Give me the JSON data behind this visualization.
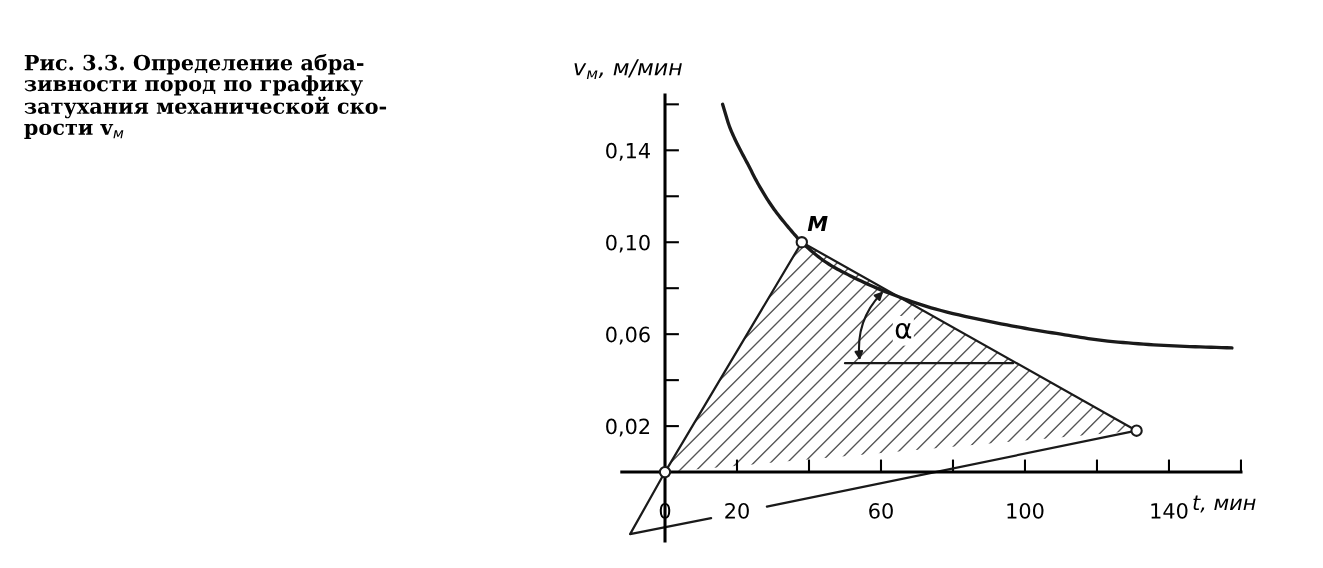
{
  "chart_data": {
    "type": "line",
    "title": "Рис. 3.3. Определение абра-\nзивности пород по графику\nзатухания механической ско-\nрости v$_{м}$",
    "xlabel": "t, мин",
    "ylabel": "v$_{м}$, м/мин",
    "xlim": [
      -12,
      160
    ],
    "ylim": [
      -0.03,
      0.164
    ],
    "xticks": [
      {
        "value": 0,
        "label": "0"
      },
      {
        "value": 20,
        "label": "20"
      },
      {
        "value": 40,
        "label": null
      },
      {
        "value": 60,
        "label": "60"
      },
      {
        "value": 80,
        "label": null
      },
      {
        "value": 100,
        "label": "100"
      },
      {
        "value": 120,
        "label": null
      },
      {
        "value": 140,
        "label": "140"
      },
      {
        "value": 160,
        "label": null
      }
    ],
    "yticks": [
      {
        "value": 0.02,
        "label": "0,02"
      },
      {
        "value": 0.04,
        "label": null
      },
      {
        "value": 0.06,
        "label": "0,06"
      },
      {
        "value": 0.08,
        "label": null
      },
      {
        "value": 0.1,
        "label": "0,10"
      },
      {
        "value": 0.12,
        "label": null
      },
      {
        "value": 0.14,
        "label": "0,14"
      },
      {
        "value": 0.16,
        "label": null
      }
    ],
    "grid": false,
    "legend": false,
    "line_style": "solid",
    "series": [
      {
        "color": "#1a1a1a",
        "x": [
          16,
          18,
          20,
          23,
          26,
          30,
          34,
          38,
          45,
          52,
          62,
          75,
          95,
          110,
          123,
          140,
          157.5
        ],
        "values": [
          0.16,
          0.15,
          0.143,
          0.134,
          0.125,
          0.115,
          0.107,
          0.1,
          0.091,
          0.085,
          0.078,
          0.071,
          0.064,
          0.06,
          0.057,
          0.055,
          0.054
        ]
      },
      {
        "color": "#1a1a1a",
        "x": [
          0,
          38,
          131
        ],
        "values": [
          0,
          0.1,
          0.018
        ]
      },
      {
        "color": "#1a1a1a",
        "x": [
          0,
          -9.7,
          12.8
        ],
        "values": [
          0,
          -0.027,
          -0.02
        ]
      },
      {
        "color": "#1a1a1a",
        "x": [
          28.3,
          131
        ],
        "values": [
          -0.015,
          0.018
        ]
      },
      {
        "color": "#1a1a1a",
        "x": [
          50,
          96.7
        ],
        "values": [
          0.0474,
          0.0474
        ]
      },
      {
        "type": "scatter",
        "marker": "circle",
        "color": "#1a1a1a",
        "x": [
          0,
          38,
          131
        ],
        "values": [
          0,
          0.1,
          0.018
        ]
      }
    ],
    "annotations": [
      {
        "text": "M",
        "x": 38,
        "y": 0.1
      },
      "α"
    ]
  }
}
